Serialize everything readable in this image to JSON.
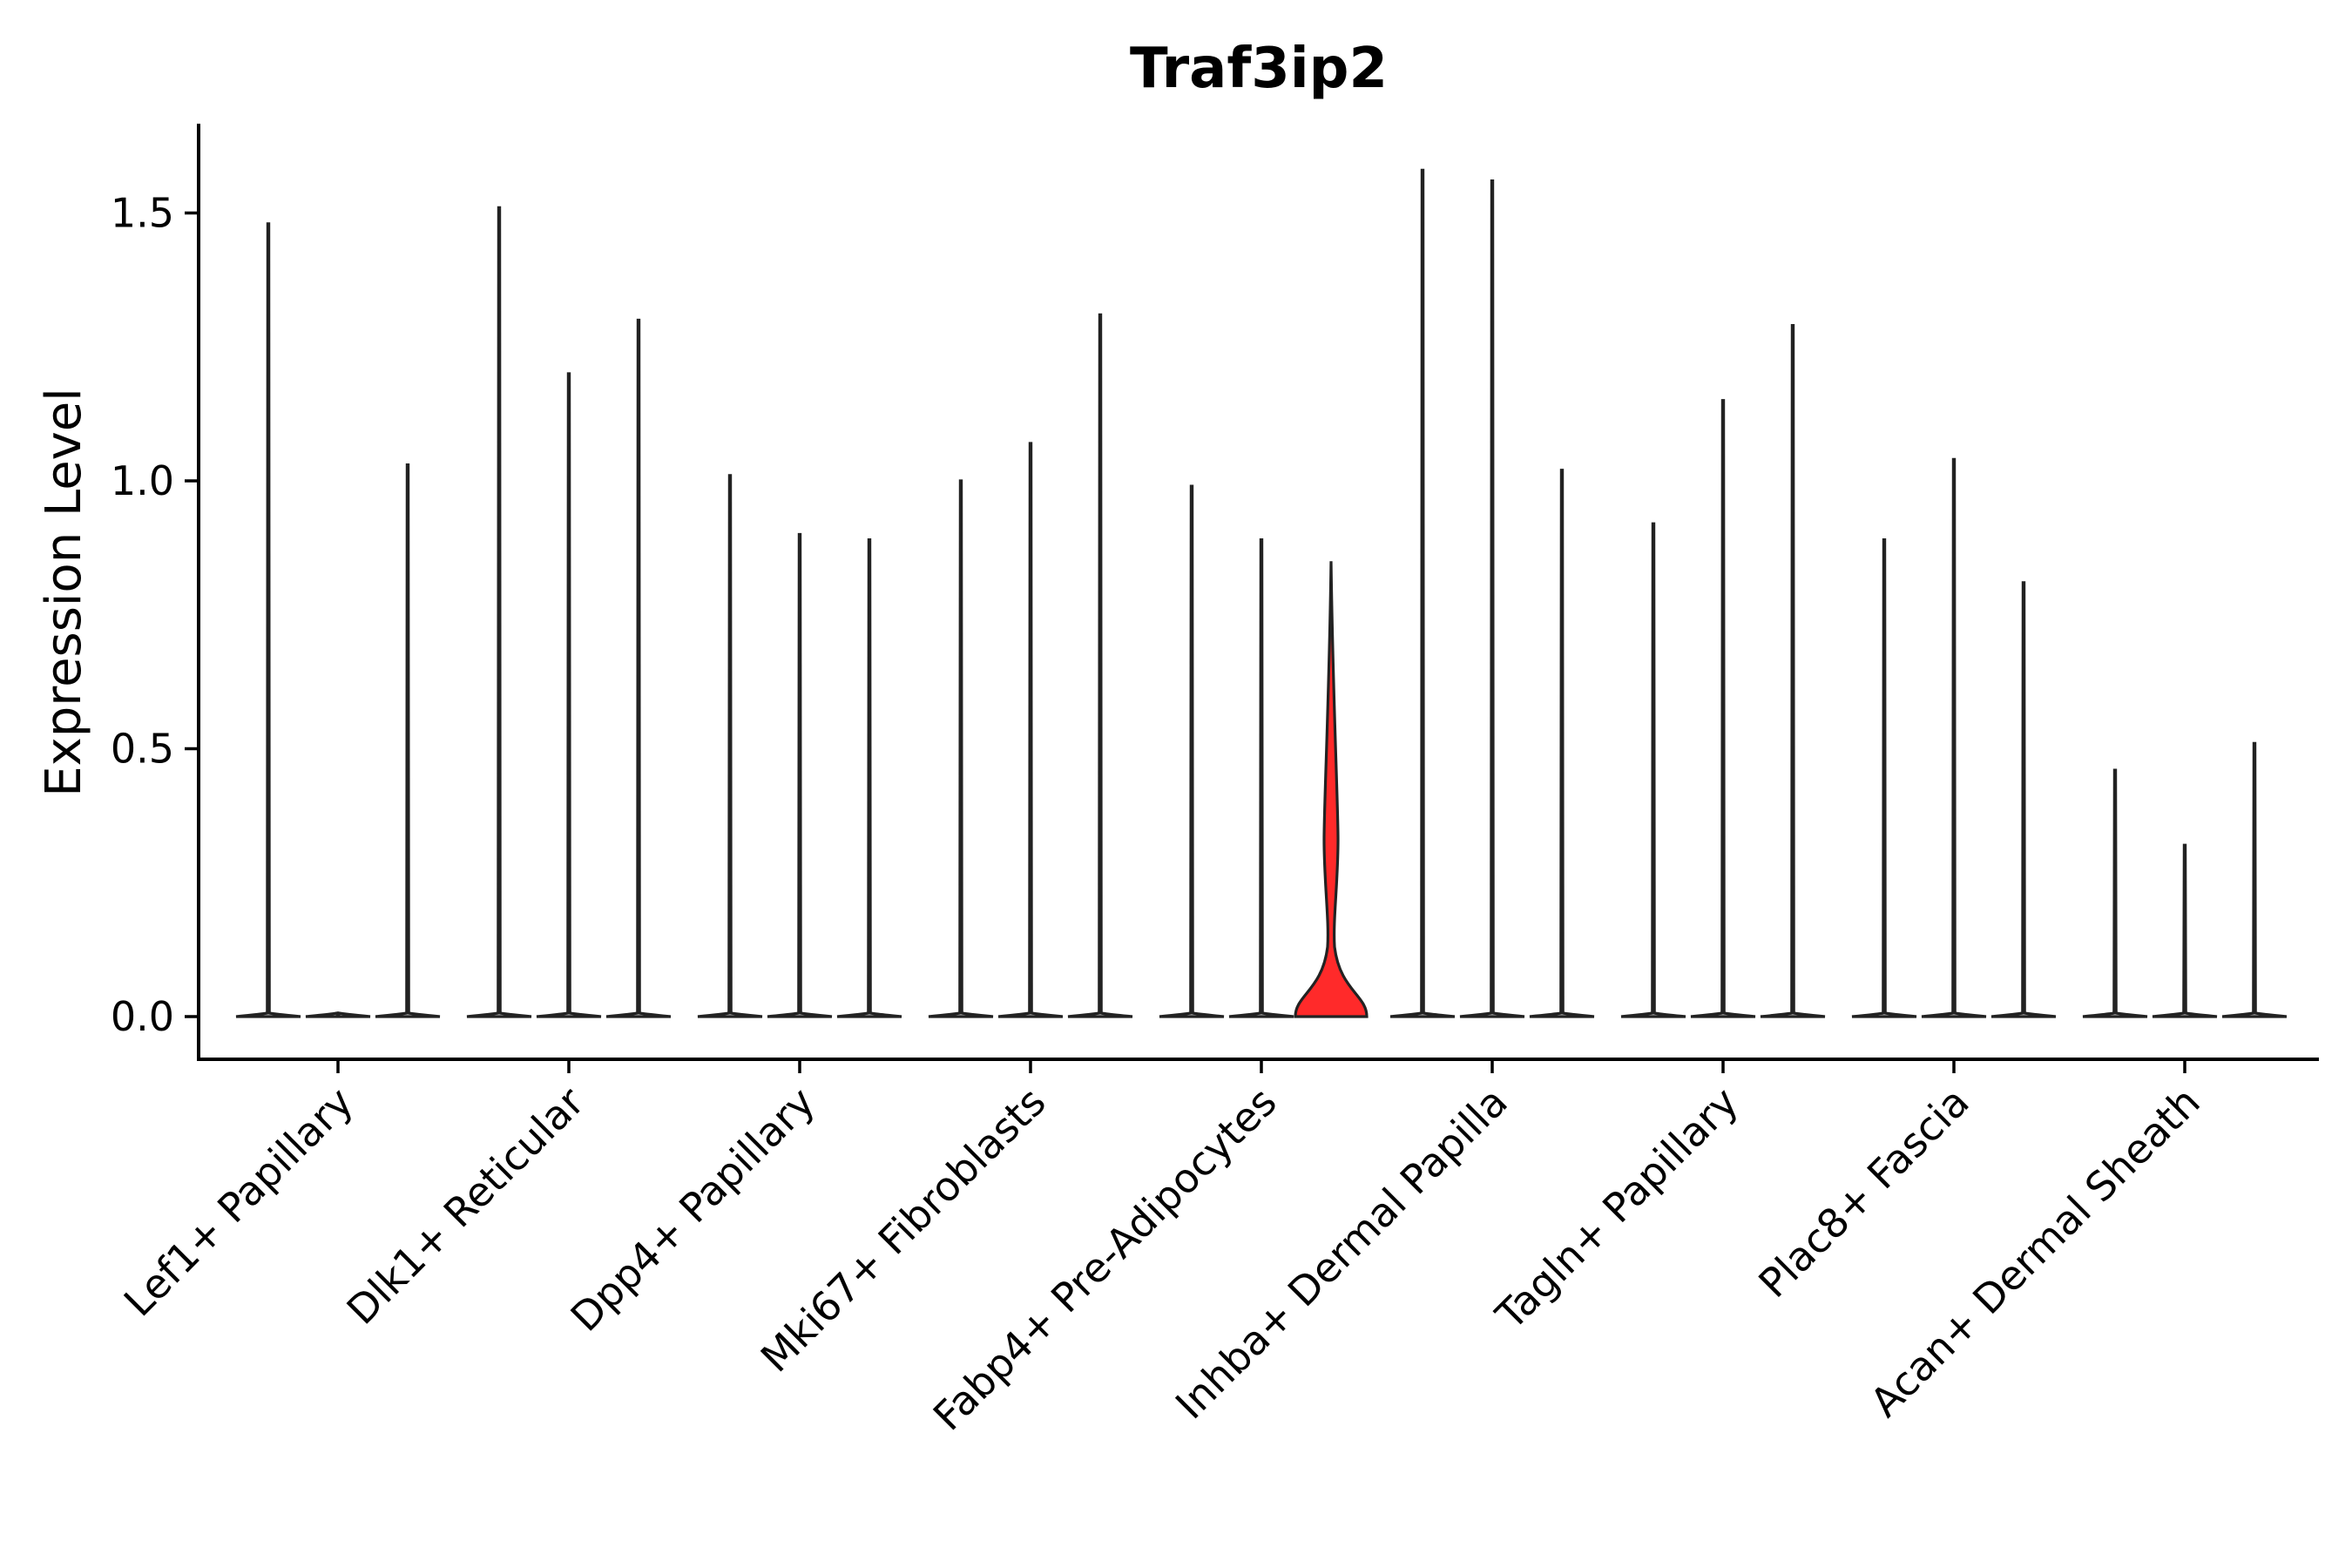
{
  "chart_data": {
    "type": "violin",
    "title": "Traf3ip2",
    "xlabel": "",
    "ylabel": "Expression Level",
    "ylim": [
      -0.08,
      1.67
    ],
    "yticks": [
      0.0,
      0.5,
      1.0,
      1.5
    ],
    "ytick_labels": [
      "0.0",
      "0.5",
      "1.0",
      "1.5"
    ],
    "categories": [
      "Lef1+ Papillary",
      "Dlk1+ Reticular",
      "Dpp4+ Papillary",
      "Mki67+ Fibroblasts",
      "Fabp4+ Pre-Adipocytes",
      "Inhba+ Dermal Papilla",
      "Tagln+ Papillary",
      "Plac8+ Fascia",
      "Acan+ Dermal Sheath"
    ],
    "groups_per_category": 3,
    "series": [
      {
        "name": "group-1",
        "max_values": [
          1.48,
          1.51,
          1.01,
          1.0,
          0.99,
          1.58,
          0.92,
          0.89,
          0.46
        ]
      },
      {
        "name": "group-2",
        "max_values": [
          0.0,
          1.2,
          0.9,
          1.07,
          0.89,
          1.56,
          1.15,
          1.04,
          0.32
        ]
      },
      {
        "name": "group-3",
        "max_values": [
          1.03,
          1.3,
          0.89,
          1.31,
          0.85,
          1.02,
          1.29,
          0.81,
          0.51
        ]
      }
    ],
    "highlight": {
      "category": "Fabp4+ Pre-Adipocytes",
      "group": 3,
      "color": "#ff2a2a"
    },
    "grid": false,
    "legend": "none"
  }
}
